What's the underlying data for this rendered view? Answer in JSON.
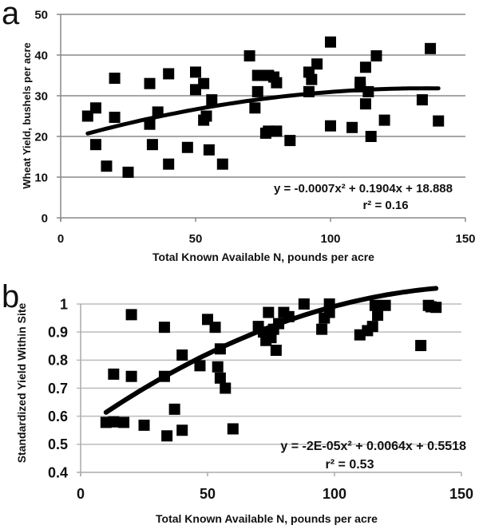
{
  "figure": {
    "panels": [
      "a",
      "b"
    ]
  },
  "chart_data": [
    {
      "type": "scatter",
      "panel_label": "a",
      "title": "",
      "xlabel": "Total Known Available N, pounds per acre",
      "ylabel": "Wheat Yield, bushels per acre",
      "xlim": [
        0,
        150
      ],
      "ylim": [
        0,
        50
      ],
      "xticks": [
        0,
        50,
        100,
        150
      ],
      "yticks": [
        0,
        10,
        20,
        30,
        40,
        50
      ],
      "xtick_labels": [
        "0",
        "50",
        "100",
        "150"
      ],
      "ytick_labels": [
        "0",
        "10",
        "20",
        "30",
        "40",
        "50"
      ],
      "grid": "horizontal",
      "marker": "square",
      "series": [
        {
          "name": "observations",
          "points": [
            [
              10,
              25
            ],
            [
              13,
              27
            ],
            [
              13,
              18
            ],
            [
              17,
              12.7
            ],
            [
              20,
              34.3
            ],
            [
              20,
              24.7
            ],
            [
              25,
              11.2
            ],
            [
              33,
              33
            ],
            [
              33,
              23
            ],
            [
              34,
              18
            ],
            [
              36,
              26
            ],
            [
              40,
              35.4
            ],
            [
              40,
              13.2
            ],
            [
              47,
              17.3
            ],
            [
              50,
              35.8
            ],
            [
              50,
              31.5
            ],
            [
              53,
              33
            ],
            [
              53,
              24
            ],
            [
              54,
              25
            ],
            [
              55,
              16.7
            ],
            [
              56,
              29
            ],
            [
              60,
              13.2
            ],
            [
              70,
              39.8
            ],
            [
              73,
              35
            ],
            [
              73,
              31
            ],
            [
              72,
              27
            ],
            [
              77,
              35
            ],
            [
              79,
              34.6
            ],
            [
              80,
              33.2
            ],
            [
              80,
              21.3
            ],
            [
              76,
              20.8
            ],
            [
              77,
              21.3
            ],
            [
              85,
              19
            ],
            [
              92,
              35.8
            ],
            [
              93,
              34
            ],
            [
              92,
              31
            ],
            [
              95,
              37.8
            ],
            [
              100,
              43.2
            ],
            [
              100,
              22.6
            ],
            [
              108,
              22.2
            ],
            [
              111,
              33.3
            ],
            [
              111,
              32.2
            ],
            [
              113,
              37
            ],
            [
              113,
              28
            ],
            [
              114,
              31
            ],
            [
              115,
              20
            ],
            [
              117,
              39.8
            ],
            [
              120,
              24
            ],
            [
              134,
              29
            ],
            [
              137,
              41.6
            ],
            [
              140,
              23.8
            ]
          ]
        }
      ],
      "trendline": {
        "type": "polynomial",
        "coefficients": [
          -0.0007,
          0.1904,
          18.888
        ],
        "x_range": [
          10,
          140
        ],
        "equation_label": "y = -0.0007x² + 0.1904x + 18.888",
        "r2_label": "r² = 0.16"
      }
    },
    {
      "type": "scatter",
      "panel_label": "b",
      "title": "",
      "xlabel": "Total Known Available N, pounds per acre",
      "ylabel": "Standardized Yield Within Site",
      "xlim": [
        0,
        150
      ],
      "ylim": [
        0.4,
        1
      ],
      "xticks": [
        0,
        50,
        100,
        150
      ],
      "yticks": [
        0.4,
        0.5,
        0.6,
        0.7,
        0.8,
        0.9,
        1
      ],
      "xtick_labels": [
        "0",
        "50",
        "100",
        "150"
      ],
      "ytick_labels": [
        "0.4",
        "0.5",
        "0.6",
        "0.7",
        "0.8",
        "0.9",
        "1"
      ],
      "grid": "horizontal",
      "marker": "square",
      "series": [
        {
          "name": "observations",
          "points": [
            [
              10,
              0.578
            ],
            [
              13,
              0.58
            ],
            [
              13,
              0.75
            ],
            [
              17,
              0.578
            ],
            [
              20,
              0.962
            ],
            [
              20,
              0.742
            ],
            [
              25,
              0.568
            ],
            [
              33,
              0.917
            ],
            [
              33,
              0.742
            ],
            [
              34,
              0.53
            ],
            [
              37,
              0.625
            ],
            [
              40,
              0.818
            ],
            [
              40,
              0.55
            ],
            [
              47,
              0.78
            ],
            [
              50,
              0.945
            ],
            [
              53,
              0.917
            ],
            [
              54,
              0.776
            ],
            [
              55,
              0.736
            ],
            [
              55,
              0.84
            ],
            [
              57,
              0.7
            ],
            [
              60,
              0.555
            ],
            [
              70,
              0.92
            ],
            [
              72,
              0.9
            ],
            [
              73,
              0.87
            ],
            [
              74,
              0.97
            ],
            [
              75,
              0.88
            ],
            [
              76,
              0.91
            ],
            [
              77,
              0.835
            ],
            [
              78,
              0.93
            ],
            [
              80,
              0.97
            ],
            [
              82,
              0.955
            ],
            [
              88,
              1.0
            ],
            [
              95,
              0.91
            ],
            [
              96,
              0.95
            ],
            [
              98,
              1.0
            ],
            [
              98,
              0.97
            ],
            [
              110,
              0.89
            ],
            [
              113,
              0.905
            ],
            [
              115,
              0.92
            ],
            [
              116,
              0.995
            ],
            [
              117,
              0.96
            ],
            [
              120,
              0.995
            ],
            [
              134,
              0.852
            ],
            [
              137,
              0.995
            ],
            [
              140,
              0.988
            ],
            [
              138,
              0.99
            ]
          ]
        }
      ],
      "trendline": {
        "type": "polynomial",
        "coefficients": [
          -2e-05,
          0.0064,
          0.5518
        ],
        "x_range": [
          10,
          140
        ],
        "equation_label": "y = -2E-05x² + 0.0064x + 0.5518",
        "r2_label": "r² = 0.53"
      }
    }
  ]
}
